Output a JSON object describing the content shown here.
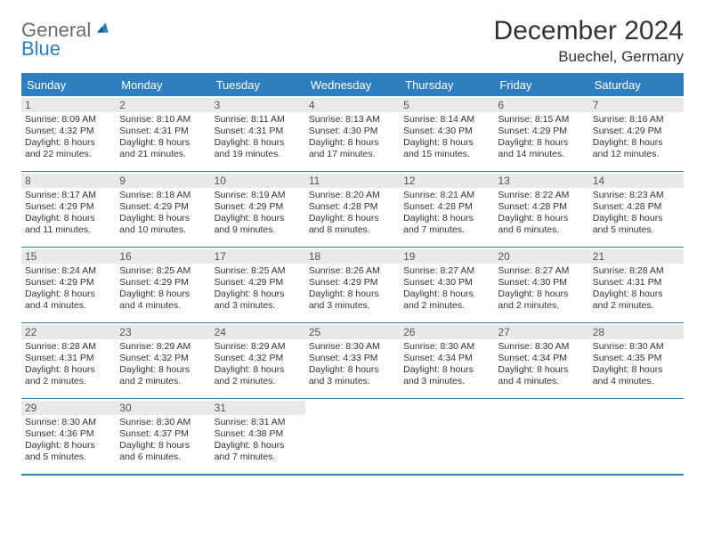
{
  "logo": {
    "text_top": "General",
    "text_bottom": "Blue"
  },
  "header": {
    "title": "December 2024",
    "location": "Buechel, Germany"
  },
  "colors": {
    "accent": "#2f7ebf",
    "header_bg": "#2f7ebf",
    "header_text": "#ffffff",
    "daynum_bg": "#e9e9e9",
    "daynum_text": "#555555",
    "body_text": "#333333",
    "logo_gray": "#6b6b6b",
    "logo_blue": "#2f7ebf",
    "rule": "#2f7ebf"
  },
  "day_names": [
    "Sunday",
    "Monday",
    "Tuesday",
    "Wednesday",
    "Thursday",
    "Friday",
    "Saturday"
  ],
  "weeks": [
    [
      {
        "num": "1",
        "sunrise": "Sunrise: 8:09 AM",
        "sunset": "Sunset: 4:32 PM",
        "daylight": "Daylight: 8 hours and 22 minutes."
      },
      {
        "num": "2",
        "sunrise": "Sunrise: 8:10 AM",
        "sunset": "Sunset: 4:31 PM",
        "daylight": "Daylight: 8 hours and 21 minutes."
      },
      {
        "num": "3",
        "sunrise": "Sunrise: 8:11 AM",
        "sunset": "Sunset: 4:31 PM",
        "daylight": "Daylight: 8 hours and 19 minutes."
      },
      {
        "num": "4",
        "sunrise": "Sunrise: 8:13 AM",
        "sunset": "Sunset: 4:30 PM",
        "daylight": "Daylight: 8 hours and 17 minutes."
      },
      {
        "num": "5",
        "sunrise": "Sunrise: 8:14 AM",
        "sunset": "Sunset: 4:30 PM",
        "daylight": "Daylight: 8 hours and 15 minutes."
      },
      {
        "num": "6",
        "sunrise": "Sunrise: 8:15 AM",
        "sunset": "Sunset: 4:29 PM",
        "daylight": "Daylight: 8 hours and 14 minutes."
      },
      {
        "num": "7",
        "sunrise": "Sunrise: 8:16 AM",
        "sunset": "Sunset: 4:29 PM",
        "daylight": "Daylight: 8 hours and 12 minutes."
      }
    ],
    [
      {
        "num": "8",
        "sunrise": "Sunrise: 8:17 AM",
        "sunset": "Sunset: 4:29 PM",
        "daylight": "Daylight: 8 hours and 11 minutes."
      },
      {
        "num": "9",
        "sunrise": "Sunrise: 8:18 AM",
        "sunset": "Sunset: 4:29 PM",
        "daylight": "Daylight: 8 hours and 10 minutes."
      },
      {
        "num": "10",
        "sunrise": "Sunrise: 8:19 AM",
        "sunset": "Sunset: 4:29 PM",
        "daylight": "Daylight: 8 hours and 9 minutes."
      },
      {
        "num": "11",
        "sunrise": "Sunrise: 8:20 AM",
        "sunset": "Sunset: 4:28 PM",
        "daylight": "Daylight: 8 hours and 8 minutes."
      },
      {
        "num": "12",
        "sunrise": "Sunrise: 8:21 AM",
        "sunset": "Sunset: 4:28 PM",
        "daylight": "Daylight: 8 hours and 7 minutes."
      },
      {
        "num": "13",
        "sunrise": "Sunrise: 8:22 AM",
        "sunset": "Sunset: 4:28 PM",
        "daylight": "Daylight: 8 hours and 6 minutes."
      },
      {
        "num": "14",
        "sunrise": "Sunrise: 8:23 AM",
        "sunset": "Sunset: 4:28 PM",
        "daylight": "Daylight: 8 hours and 5 minutes."
      }
    ],
    [
      {
        "num": "15",
        "sunrise": "Sunrise: 8:24 AM",
        "sunset": "Sunset: 4:29 PM",
        "daylight": "Daylight: 8 hours and 4 minutes."
      },
      {
        "num": "16",
        "sunrise": "Sunrise: 8:25 AM",
        "sunset": "Sunset: 4:29 PM",
        "daylight": "Daylight: 8 hours and 4 minutes."
      },
      {
        "num": "17",
        "sunrise": "Sunrise: 8:25 AM",
        "sunset": "Sunset: 4:29 PM",
        "daylight": "Daylight: 8 hours and 3 minutes."
      },
      {
        "num": "18",
        "sunrise": "Sunrise: 8:26 AM",
        "sunset": "Sunset: 4:29 PM",
        "daylight": "Daylight: 8 hours and 3 minutes."
      },
      {
        "num": "19",
        "sunrise": "Sunrise: 8:27 AM",
        "sunset": "Sunset: 4:30 PM",
        "daylight": "Daylight: 8 hours and 2 minutes."
      },
      {
        "num": "20",
        "sunrise": "Sunrise: 8:27 AM",
        "sunset": "Sunset: 4:30 PM",
        "daylight": "Daylight: 8 hours and 2 minutes."
      },
      {
        "num": "21",
        "sunrise": "Sunrise: 8:28 AM",
        "sunset": "Sunset: 4:31 PM",
        "daylight": "Daylight: 8 hours and 2 minutes."
      }
    ],
    [
      {
        "num": "22",
        "sunrise": "Sunrise: 8:28 AM",
        "sunset": "Sunset: 4:31 PM",
        "daylight": "Daylight: 8 hours and 2 minutes."
      },
      {
        "num": "23",
        "sunrise": "Sunrise: 8:29 AM",
        "sunset": "Sunset: 4:32 PM",
        "daylight": "Daylight: 8 hours and 2 minutes."
      },
      {
        "num": "24",
        "sunrise": "Sunrise: 8:29 AM",
        "sunset": "Sunset: 4:32 PM",
        "daylight": "Daylight: 8 hours and 2 minutes."
      },
      {
        "num": "25",
        "sunrise": "Sunrise: 8:30 AM",
        "sunset": "Sunset: 4:33 PM",
        "daylight": "Daylight: 8 hours and 3 minutes."
      },
      {
        "num": "26",
        "sunrise": "Sunrise: 8:30 AM",
        "sunset": "Sunset: 4:34 PM",
        "daylight": "Daylight: 8 hours and 3 minutes."
      },
      {
        "num": "27",
        "sunrise": "Sunrise: 8:30 AM",
        "sunset": "Sunset: 4:34 PM",
        "daylight": "Daylight: 8 hours and 4 minutes."
      },
      {
        "num": "28",
        "sunrise": "Sunrise: 8:30 AM",
        "sunset": "Sunset: 4:35 PM",
        "daylight": "Daylight: 8 hours and 4 minutes."
      }
    ],
    [
      {
        "num": "29",
        "sunrise": "Sunrise: 8:30 AM",
        "sunset": "Sunset: 4:36 PM",
        "daylight": "Daylight: 8 hours and 5 minutes."
      },
      {
        "num": "30",
        "sunrise": "Sunrise: 8:30 AM",
        "sunset": "Sunset: 4:37 PM",
        "daylight": "Daylight: 8 hours and 6 minutes."
      },
      {
        "num": "31",
        "sunrise": "Sunrise: 8:31 AM",
        "sunset": "Sunset: 4:38 PM",
        "daylight": "Daylight: 8 hours and 7 minutes."
      },
      null,
      null,
      null,
      null
    ]
  ]
}
